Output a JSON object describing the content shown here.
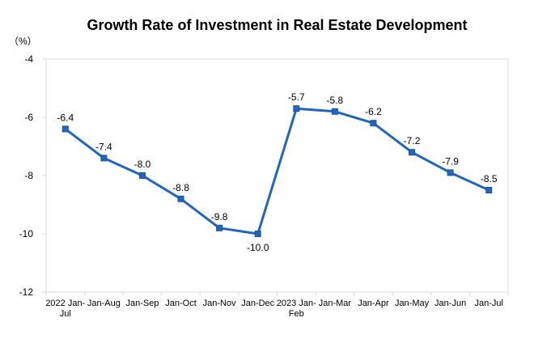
{
  "chart_data": {
    "type": "line",
    "title": "Growth Rate of Investment in Real Estate Development",
    "unit_label": "（%）",
    "categories": [
      [
        "2022 Jan-",
        "Jul"
      ],
      [
        "Jan-Aug"
      ],
      [
        "Jan-Sep"
      ],
      [
        "Jan-Oct"
      ],
      [
        "Jan-Nov"
      ],
      [
        "Jan-Dec"
      ],
      [
        "2023 Jan-",
        "Feb"
      ],
      [
        "Jan-Mar"
      ],
      [
        "Jan-Apr"
      ],
      [
        "Jan-May"
      ],
      [
        "Jan-Jun"
      ],
      [
        "Jan-Jul"
      ]
    ],
    "values": [
      -6.4,
      -7.4,
      -8.0,
      -8.8,
      -9.8,
      -10.0,
      -5.7,
      -5.8,
      -6.2,
      -7.2,
      -7.9,
      -8.5
    ],
    "data_labels": [
      "-6.4",
      "-7.4",
      "-8.0",
      "-8.8",
      "-9.8",
      "-10.0",
      "-5.7",
      "-5.8",
      "-6.2",
      "-7.2",
      "-7.9",
      "-8.5"
    ],
    "label_below_index": 5,
    "y_ticks": [
      -4,
      -6,
      -8,
      -10,
      -12
    ],
    "y_tick_labels": [
      "-4",
      "-6",
      "-8",
      "-10",
      "-12"
    ],
    "ylim": [
      -12,
      -4
    ],
    "grid": false,
    "legend": "none",
    "line_color": "#2166BE",
    "marker_color": "#2166BE",
    "marker_stroke": "#1B55A0",
    "axis_color": "#D9D9D9",
    "text_color": "#000000"
  }
}
